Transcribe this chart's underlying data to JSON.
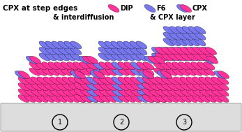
{
  "title_left": "CPX at step edges",
  "title_center": "& interdiffusion",
  "title_right": "& CPX layer",
  "dip_color": "#FF3399",
  "f6_color": "#7777EE",
  "bg_color": "#FFFFFF",
  "substrate_color": "#DDDDDD",
  "fig_width": 3.47,
  "fig_height": 1.89,
  "circle_labels": [
    "1",
    "2",
    "3"
  ]
}
